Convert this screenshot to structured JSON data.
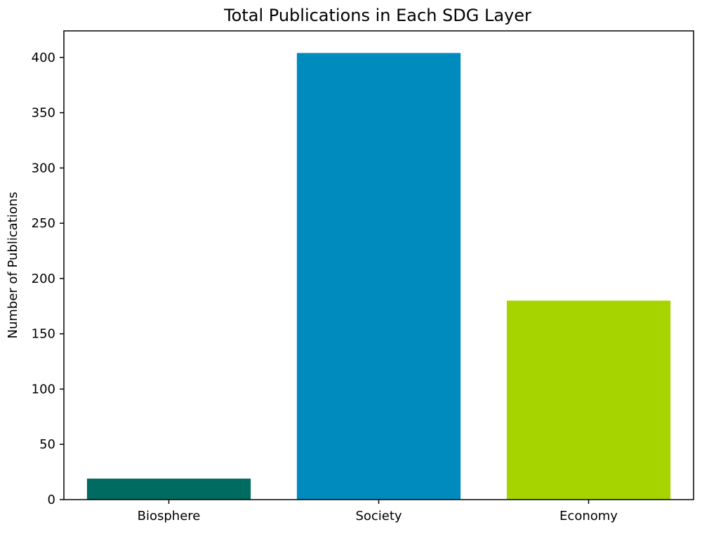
{
  "chart_data": {
    "type": "bar",
    "title": "Total Publications in Each SDG Layer",
    "xlabel": "",
    "ylabel": "Number of Publications",
    "categories": [
      "Biosphere",
      "Society",
      "Economy"
    ],
    "values": [
      19,
      404,
      180
    ],
    "colors": [
      "#006b60",
      "#008bbf",
      "#a6d400"
    ],
    "ylim": [
      0,
      424
    ],
    "yticks": [
      0,
      50,
      100,
      150,
      200,
      250,
      300,
      350,
      400
    ],
    "grid": false
  }
}
